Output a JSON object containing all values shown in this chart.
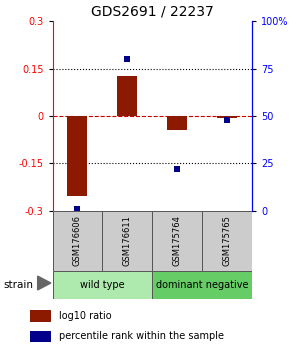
{
  "title": "GDS2691 / 22237",
  "samples": [
    "GSM176606",
    "GSM176611",
    "GSM175764",
    "GSM175765"
  ],
  "log10_ratio": [
    -0.255,
    0.125,
    -0.045,
    -0.008
  ],
  "percentile_rank": [
    1,
    80,
    22,
    48
  ],
  "ylim_left": [
    -0.3,
    0.3
  ],
  "yticks_left": [
    -0.3,
    -0.15,
    0,
    0.15,
    0.3
  ],
  "ytick_labels_left": [
    "-0.3",
    "-0.15",
    "0",
    "0.15",
    "0.3"
  ],
  "yticks_right_pct": [
    0,
    25,
    50,
    75,
    100
  ],
  "ytick_labels_right": [
    "0",
    "25",
    "50",
    "75",
    "100%"
  ],
  "groups": [
    {
      "label": "wild type",
      "cols": [
        0,
        1
      ],
      "color": "#aeeaae"
    },
    {
      "label": "dominant negative",
      "cols": [
        2,
        3
      ],
      "color": "#66cc66"
    }
  ],
  "bar_color": "#8b1a00",
  "dot_color": "#00008b",
  "hline_color": "#cc0000",
  "dotted_color": "#000000",
  "legend_red_label": "log10 ratio",
  "legend_blue_label": "percentile rank within the sample",
  "strain_label": "strain",
  "bar_width": 0.4,
  "sample_box_color": "#cccccc",
  "title_fontsize": 10,
  "tick_fontsize": 7,
  "sample_fontsize": 6,
  "group_fontsize": 7,
  "legend_fontsize": 7
}
